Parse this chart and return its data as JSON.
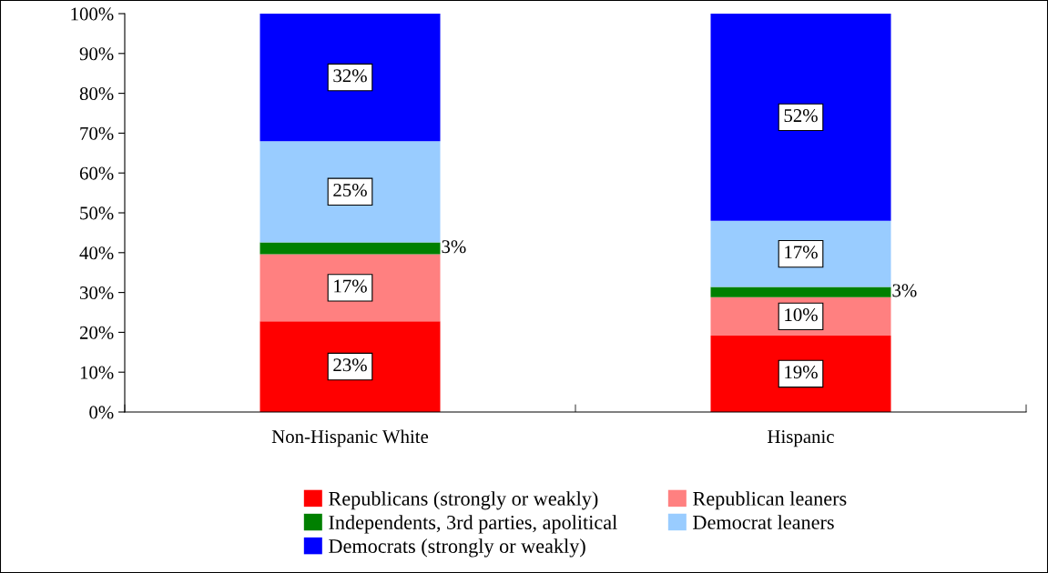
{
  "chart_data": {
    "type": "bar",
    "stacked": true,
    "categories": [
      "Non-Hispanic White",
      "Hispanic"
    ],
    "series": [
      {
        "name": "Republicans (strongly or weakly)",
        "color": "#ff0000",
        "values": [
          22.8,
          19.2
        ],
        "value_labels": [
          "23%",
          "19%"
        ]
      },
      {
        "name": "Republican leaners",
        "color": "#ff8080",
        "values": [
          16.8,
          9.6
        ],
        "value_labels": [
          "17%",
          "10%"
        ]
      },
      {
        "name": "Independents, 3rd parties, apolitical",
        "color": "#008000",
        "values": [
          3,
          2.6
        ],
        "value_labels": [
          "3%",
          "3%"
        ]
      },
      {
        "name": "Democrat leaners",
        "color": "#99ccff",
        "values": [
          25.4,
          16.6
        ],
        "value_labels": [
          "25%",
          "17%"
        ]
      },
      {
        "name": "Democrats (strongly or weakly)",
        "color": "#0000ff",
        "values": [
          32,
          52
        ],
        "value_labels": [
          "32%",
          "52%"
        ]
      }
    ],
    "ylim": [
      0,
      100
    ],
    "yticks": [
      {
        "value": 0,
        "label": "0%"
      },
      {
        "value": 10,
        "label": "10%"
      },
      {
        "value": 20,
        "label": "20%"
      },
      {
        "value": 30,
        "label": "30%"
      },
      {
        "value": 40,
        "label": "40%"
      },
      {
        "value": 50,
        "label": "50%"
      },
      {
        "value": 60,
        "label": "60%"
      },
      {
        "value": 70,
        "label": "70%"
      },
      {
        "value": 80,
        "label": "80%"
      },
      {
        "value": 90,
        "label": "90%"
      },
      {
        "value": 100,
        "label": "100%"
      }
    ],
    "grid": false,
    "legend": "bottom"
  }
}
